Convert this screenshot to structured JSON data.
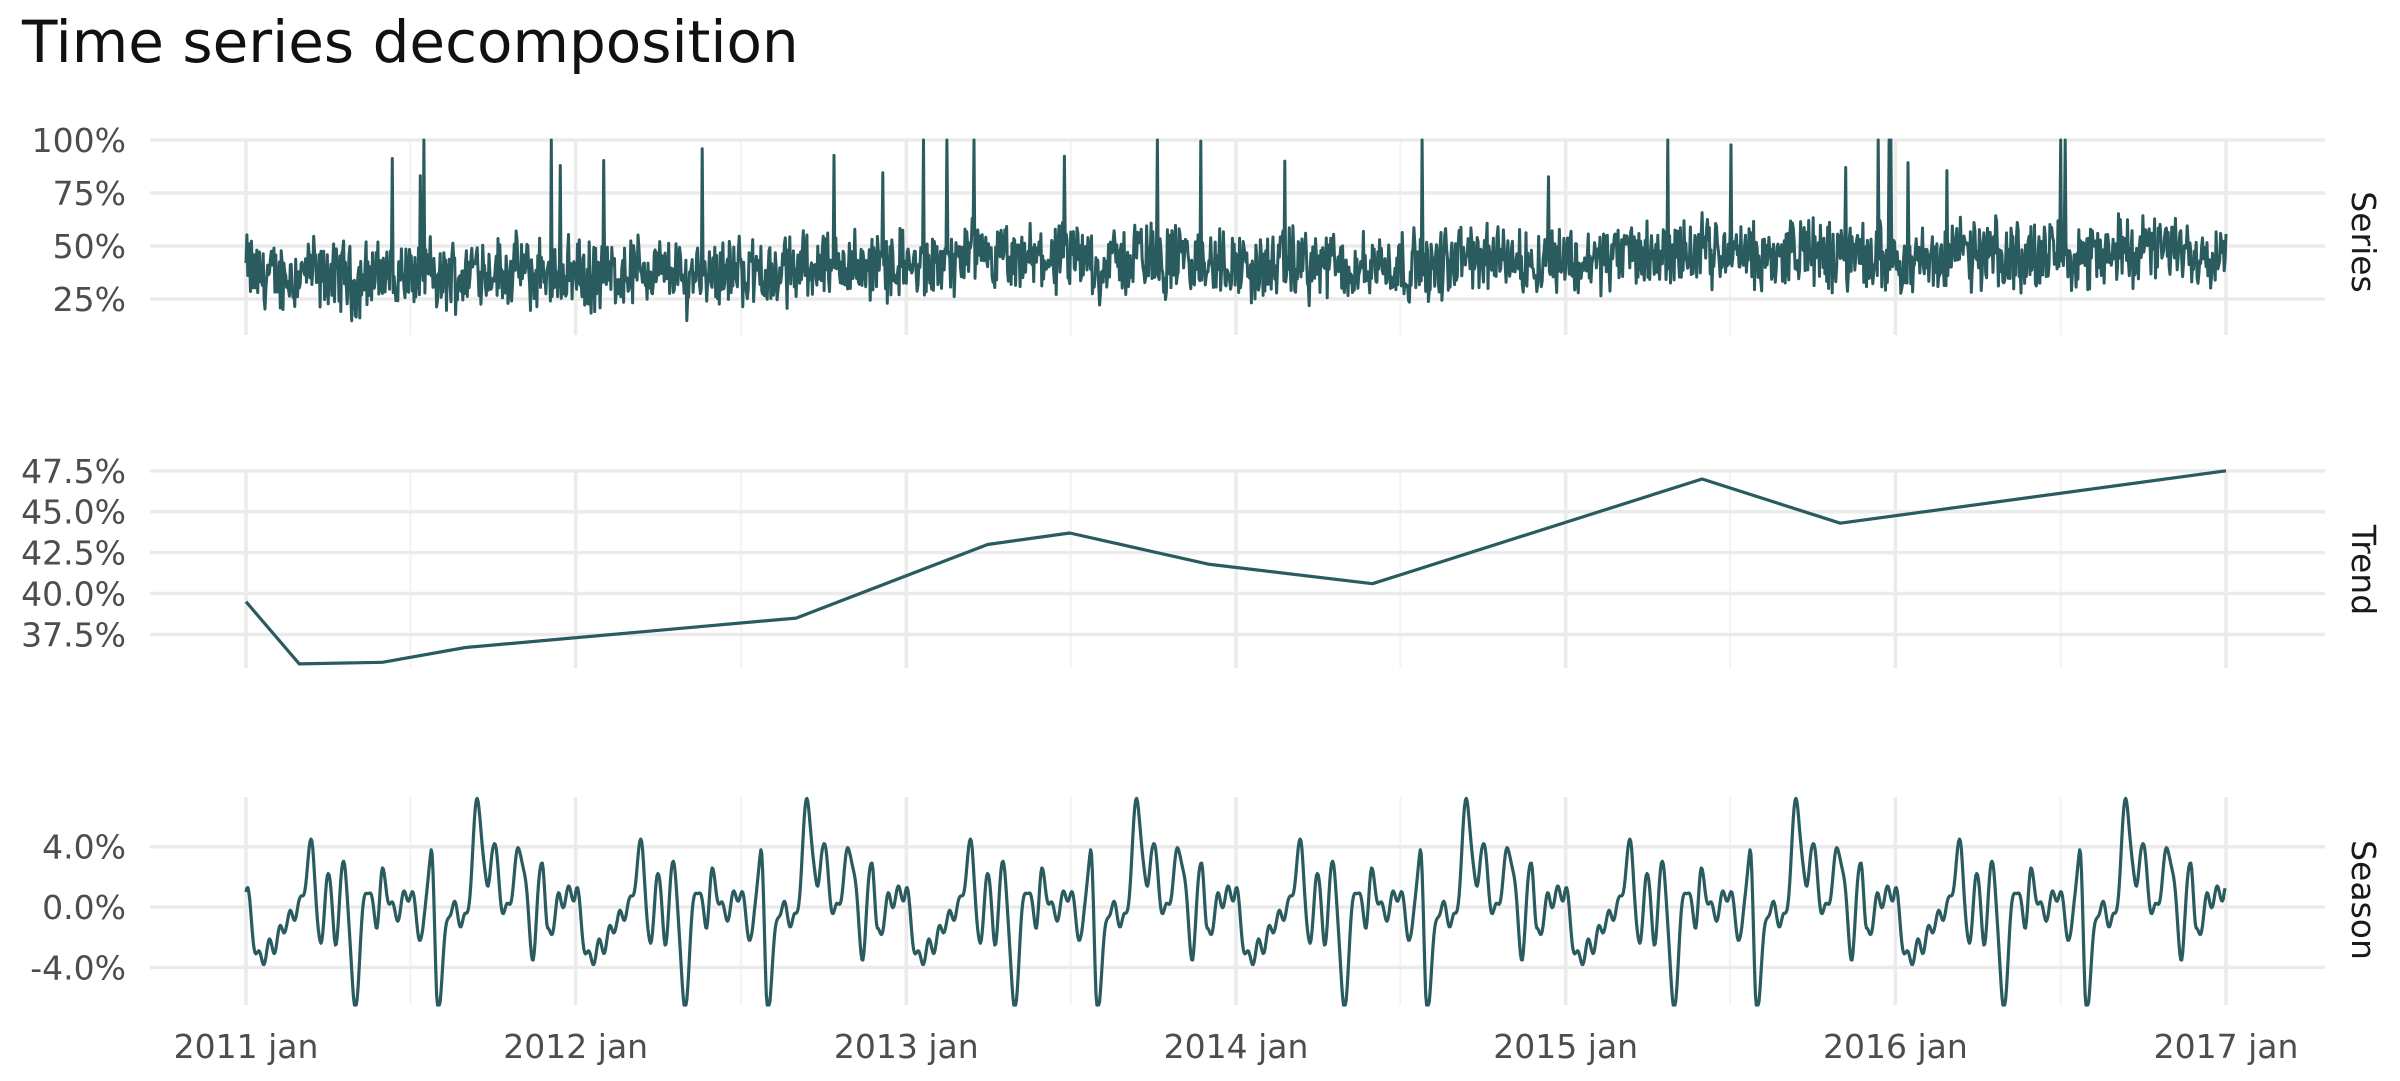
{
  "title": "Time series decomposition",
  "colors": {
    "line": "#2a5b5e",
    "grid": "#ebebeb",
    "text": "#4d4d4d"
  },
  "chart_data": {
    "type": "line",
    "title": "Time series decomposition",
    "x_ticks": [
      "2011 jan",
      "2012 jan",
      "2013 jan",
      "2014 jan",
      "2015 jan",
      "2016 jan",
      "2017 jan"
    ],
    "x_range": [
      "2011-01-01",
      "2017-01-01"
    ],
    "grid": true,
    "panels": [
      {
        "name": "Series",
        "y_ticks": [
          "25%",
          "50%",
          "75%",
          "100%"
        ],
        "ylim": [
          0.08,
          1.0
        ],
        "frequency": "daily",
        "summary": {
          "min": 0.09,
          "max": 1.0,
          "typical_range": [
            0.2,
            0.6
          ]
        }
      },
      {
        "name": "Trend",
        "y_ticks": [
          "37.5%",
          "40.0%",
          "42.5%",
          "45.0%",
          "47.5%"
        ],
        "ylim": [
          0.3545,
          0.4755
        ],
        "x": [
          "2011-01-01",
          "2011-03-01",
          "2011-06-01",
          "2011-09-01",
          "2012-09-01",
          "2013-04-01",
          "2013-07-01",
          "2013-12-01",
          "2014-06-01",
          "2015-06-01",
          "2015-11-01",
          "2017-01-01"
        ],
        "values": [
          0.395,
          0.357,
          0.358,
          0.367,
          0.385,
          0.43,
          0.437,
          0.418,
          0.406,
          0.47,
          0.443,
          0.475
        ]
      },
      {
        "name": "Season",
        "y_ticks": [
          "-4.0%",
          "0.0%",
          "4.0%"
        ],
        "ylim": [
          -0.065,
          0.073
        ],
        "period": "1 year",
        "x": [
          "01-01",
          "01-15",
          "02-01",
          "02-15",
          "03-01",
          "03-15",
          "03-25",
          "04-01",
          "04-10",
          "04-20",
          "05-01",
          "05-15",
          "05-25",
          "06-01",
          "06-15",
          "07-01",
          "07-15",
          "07-25",
          "08-01",
          "08-15",
          "09-01",
          "09-15",
          "09-25",
          "10-01",
          "10-15",
          "11-01",
          "11-15",
          "11-25",
          "12-01",
          "12-15",
          "12-31"
        ],
        "values": [
          0.01,
          -0.035,
          -0.025,
          -0.01,
          0.0,
          0.04,
          -0.03,
          0.025,
          -0.02,
          0.03,
          -0.065,
          0.015,
          -0.01,
          0.02,
          -0.005,
          0.01,
          -0.02,
          0.04,
          -0.065,
          0.0,
          -0.01,
          0.07,
          0.01,
          0.042,
          -0.005,
          0.038,
          -0.03,
          0.035,
          -0.02,
          0.005,
          0.01
        ]
      }
    ]
  }
}
